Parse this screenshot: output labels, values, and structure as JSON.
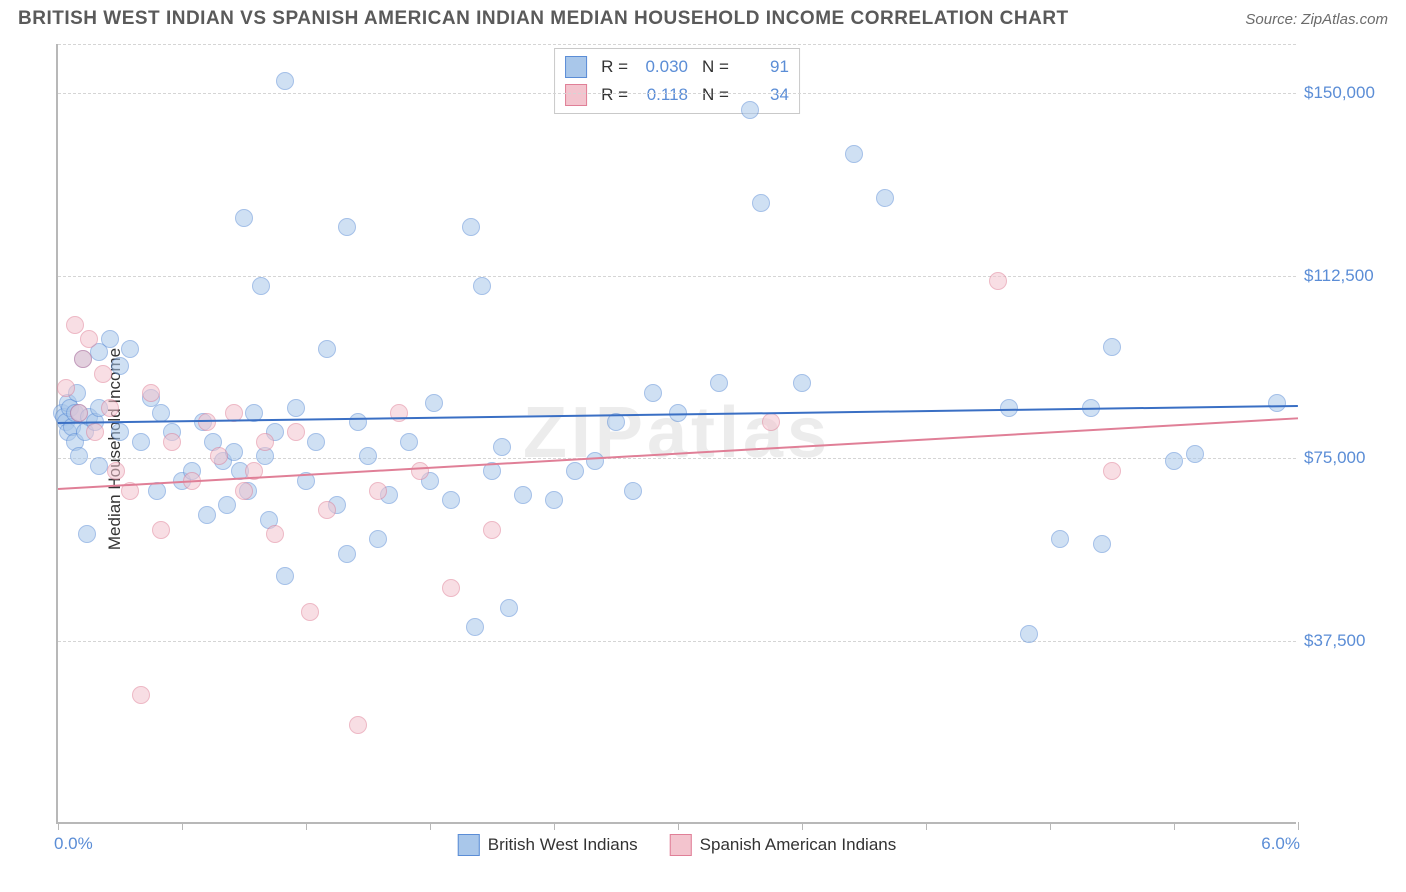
{
  "header": {
    "title": "BRITISH WEST INDIAN VS SPANISH AMERICAN INDIAN MEDIAN HOUSEHOLD INCOME CORRELATION CHART",
    "source_label": "Source:",
    "source_value": "ZipAtlas.com"
  },
  "chart": {
    "type": "scatter",
    "ylabel": "Median Household Income",
    "watermark": "ZIPatlas",
    "background_color": "#ffffff",
    "grid_color": "#d5d5d5",
    "axis_color": "#b8b8b8",
    "label_color": "#5b8dd6",
    "xlim": [
      0.0,
      6.0
    ],
    "ylim": [
      0,
      160000
    ],
    "x_format": "percent",
    "y_format": "dollar",
    "x_labels": {
      "min": "0.0%",
      "max": "6.0%"
    },
    "y_ticks": [
      37500,
      75000,
      112500,
      150000
    ],
    "y_tick_labels": [
      "$37,500",
      "$75,000",
      "$112,500",
      "$150,000"
    ],
    "x_tick_positions": [
      0.0,
      0.6,
      1.2,
      1.8,
      2.4,
      3.0,
      3.6,
      4.2,
      4.8,
      5.4,
      6.0
    ],
    "marker_radius": 9,
    "marker_opacity": 0.55,
    "marker_border_width": 1.2,
    "series": [
      {
        "name": "British West Indians",
        "fill_color": "#a9c7ea",
        "stroke_color": "#5b8dd6",
        "trend": {
          "y_at_xmin": 82500,
          "y_at_xmax": 86000,
          "line_color": "#3a6fc4",
          "line_width": 2
        },
        "R": "0.030",
        "N": "91",
        "points": [
          [
            0.02,
            84000
          ],
          [
            0.03,
            83000
          ],
          [
            0.04,
            82000
          ],
          [
            0.05,
            86000
          ],
          [
            0.05,
            80000
          ],
          [
            0.06,
            85000
          ],
          [
            0.07,
            81000
          ],
          [
            0.08,
            84000
          ],
          [
            0.08,
            78000
          ],
          [
            0.09,
            88000
          ],
          [
            0.1,
            84000
          ],
          [
            0.1,
            75000
          ],
          [
            0.12,
            95000
          ],
          [
            0.13,
            80000
          ],
          [
            0.14,
            59000
          ],
          [
            0.15,
            83000
          ],
          [
            0.18,
            82000
          ],
          [
            0.2,
            96500
          ],
          [
            0.2,
            85000
          ],
          [
            0.2,
            73000
          ],
          [
            0.25,
            99000
          ],
          [
            0.3,
            93500
          ],
          [
            0.3,
            80000
          ],
          [
            0.35,
            97000
          ],
          [
            0.4,
            78000
          ],
          [
            0.45,
            87000
          ],
          [
            0.48,
            68000
          ],
          [
            0.5,
            84000
          ],
          [
            0.55,
            80000
          ],
          [
            0.6,
            70000
          ],
          [
            0.65,
            72000
          ],
          [
            0.7,
            82000
          ],
          [
            0.72,
            63000
          ],
          [
            0.75,
            78000
          ],
          [
            0.8,
            74000
          ],
          [
            0.82,
            65000
          ],
          [
            0.85,
            76000
          ],
          [
            0.88,
            72000
          ],
          [
            0.9,
            124000
          ],
          [
            0.92,
            68000
          ],
          [
            0.95,
            84000
          ],
          [
            0.98,
            110000
          ],
          [
            1.0,
            75000
          ],
          [
            1.02,
            62000
          ],
          [
            1.05,
            80000
          ],
          [
            1.1,
            152000
          ],
          [
            1.1,
            50500
          ],
          [
            1.15,
            85000
          ],
          [
            1.2,
            70000
          ],
          [
            1.25,
            78000
          ],
          [
            1.3,
            97000
          ],
          [
            1.35,
            65000
          ],
          [
            1.4,
            122000
          ],
          [
            1.4,
            55000
          ],
          [
            1.45,
            82000
          ],
          [
            1.5,
            75000
          ],
          [
            1.55,
            58000
          ],
          [
            1.6,
            67000
          ],
          [
            1.7,
            78000
          ],
          [
            1.8,
            70000
          ],
          [
            1.82,
            86000
          ],
          [
            1.9,
            66000
          ],
          [
            2.0,
            122000
          ],
          [
            2.02,
            40000
          ],
          [
            2.05,
            110000
          ],
          [
            2.1,
            72000
          ],
          [
            2.15,
            77000
          ],
          [
            2.18,
            44000
          ],
          [
            2.25,
            67000
          ],
          [
            2.4,
            66000
          ],
          [
            2.5,
            72000
          ],
          [
            2.6,
            74000
          ],
          [
            2.7,
            82000
          ],
          [
            2.78,
            68000
          ],
          [
            2.88,
            88000
          ],
          [
            3.0,
            84000
          ],
          [
            3.2,
            90000
          ],
          [
            3.35,
            146000
          ],
          [
            3.4,
            127000
          ],
          [
            3.6,
            90000
          ],
          [
            3.85,
            137000
          ],
          [
            4.0,
            128000
          ],
          [
            4.6,
            85000
          ],
          [
            4.7,
            38500
          ],
          [
            4.85,
            58000
          ],
          [
            5.0,
            85000
          ],
          [
            5.05,
            57000
          ],
          [
            5.1,
            97500
          ],
          [
            5.4,
            74000
          ],
          [
            5.5,
            75500
          ],
          [
            5.9,
            86000
          ]
        ]
      },
      {
        "name": "Spanish American Indians",
        "fill_color": "#f3c4ce",
        "stroke_color": "#e07f97",
        "trend": {
          "y_at_xmin": 69000,
          "y_at_xmax": 83500,
          "line_color": "#e07f97",
          "line_width": 2
        },
        "R": "0.118",
        "N": "34",
        "points": [
          [
            0.04,
            89000
          ],
          [
            0.08,
            102000
          ],
          [
            0.1,
            84000
          ],
          [
            0.12,
            95000
          ],
          [
            0.15,
            99000
          ],
          [
            0.18,
            80000
          ],
          [
            0.22,
            92000
          ],
          [
            0.25,
            85000
          ],
          [
            0.28,
            72000
          ],
          [
            0.35,
            68000
          ],
          [
            0.4,
            26000
          ],
          [
            0.45,
            88000
          ],
          [
            0.5,
            60000
          ],
          [
            0.55,
            78000
          ],
          [
            0.65,
            70000
          ],
          [
            0.72,
            82000
          ],
          [
            0.78,
            75000
          ],
          [
            0.85,
            84000
          ],
          [
            0.9,
            68000
          ],
          [
            0.95,
            72000
          ],
          [
            1.0,
            78000
          ],
          [
            1.05,
            59000
          ],
          [
            1.15,
            80000
          ],
          [
            1.22,
            43000
          ],
          [
            1.3,
            64000
          ],
          [
            1.45,
            20000
          ],
          [
            1.55,
            68000
          ],
          [
            1.65,
            84000
          ],
          [
            1.75,
            72000
          ],
          [
            1.9,
            48000
          ],
          [
            2.1,
            60000
          ],
          [
            3.45,
            82000
          ],
          [
            4.55,
            111000
          ],
          [
            5.1,
            72000
          ]
        ]
      }
    ],
    "legend_top_labels": {
      "R": "R =",
      "N": "N ="
    },
    "legend_bottom": [
      "British West Indians",
      "Spanish American Indians"
    ]
  }
}
